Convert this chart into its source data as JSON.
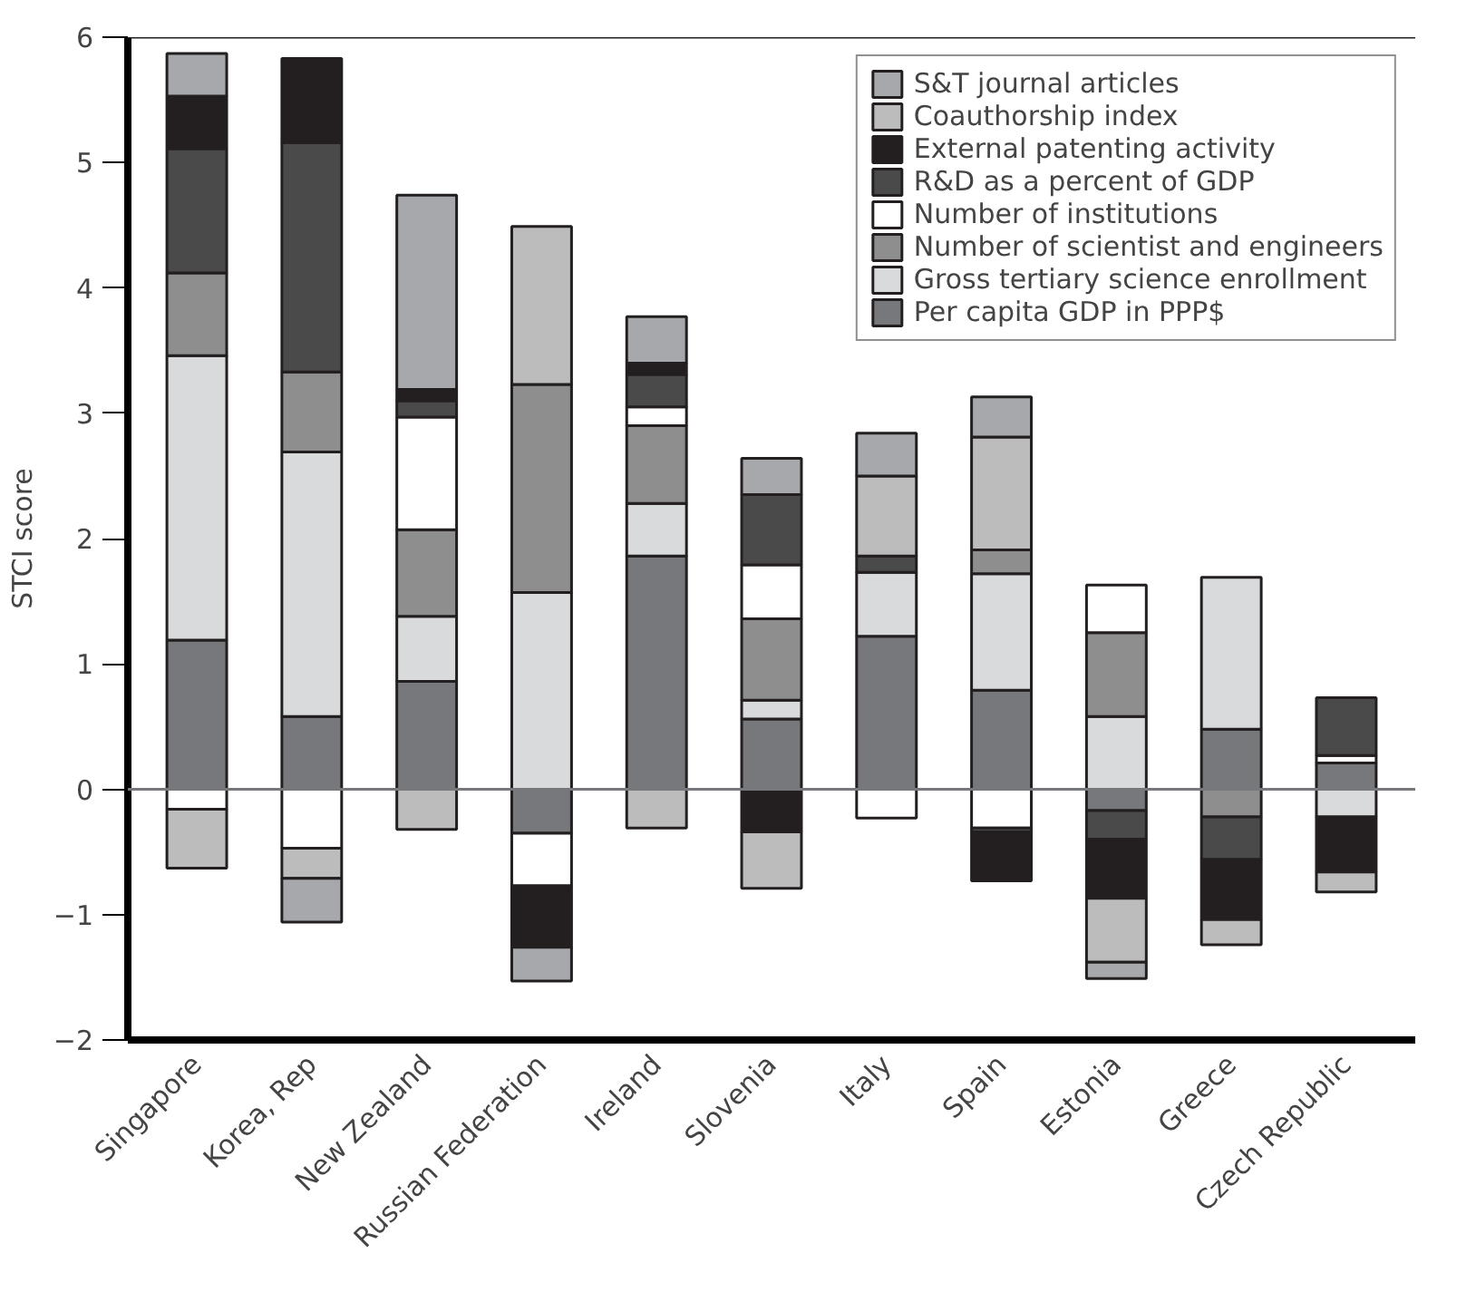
{
  "chart_data": {
    "type": "bar",
    "stacked": true,
    "ylabel": "STCI score",
    "categories": [
      "Singapore",
      "Korea, Rep",
      "New Zealand",
      "Russian Federation",
      "Ireland",
      "Slovenia",
      "Italy",
      "Spain",
      "Estonia",
      "Greece",
      "Czech Republic"
    ],
    "series": [
      {
        "name": "Per capita GDP in PPP$",
        "color": "#77787b",
        "values": [
          1.19,
          0.58,
          0.86,
          -0.35,
          1.86,
          0.56,
          1.22,
          0.79,
          -0.17,
          0.48,
          0.21
        ]
      },
      {
        "name": "Gross tertiary science enrollment",
        "color": "#d9dadb",
        "values": [
          2.27,
          2.11,
          0.52,
          1.57,
          0.42,
          0.15,
          0.51,
          0.93,
          0.58,
          1.21,
          -0.22
        ]
      },
      {
        "name": "Number of scientist and engineers",
        "color": "#8e8e8e",
        "values": [
          0.66,
          0.64,
          0.69,
          1.66,
          0.62,
          0.65,
          null,
          0.19,
          0.67,
          -0.22,
          null
        ]
      },
      {
        "name": "Number of institutions",
        "color": "#ffffff",
        "values": [
          -0.16,
          -0.47,
          0.9,
          -0.42,
          0.15,
          0.43,
          -0.23,
          -0.31,
          0.38,
          null,
          0.06
        ]
      },
      {
        "name": "R&D as a percent of GDP",
        "color": "#4a4a4a",
        "values": [
          0.99,
          1.83,
          0.13,
          null,
          0.26,
          0.56,
          0.13,
          -0.03,
          -0.23,
          -0.34,
          0.46
        ]
      },
      {
        "name": "External patenting activity",
        "color": "#231f20",
        "values": [
          0.42,
          0.67,
          0.09,
          -0.49,
          0.09,
          -0.34,
          null,
          -0.39,
          -0.47,
          -0.48,
          -0.44
        ]
      },
      {
        "name": "Coauthorship index",
        "color": "#bcbcbc",
        "values": [
          -0.47,
          -0.24,
          -0.32,
          1.26,
          -0.31,
          -0.45,
          0.64,
          0.9,
          -0.51,
          -0.2,
          -0.16
        ]
      },
      {
        "name": "S&T journal articles",
        "color": "#a6a8ab",
        "values": [
          0.34,
          -0.35,
          1.55,
          -0.27,
          0.37,
          0.29,
          0.34,
          0.32,
          -0.13,
          null,
          null
        ]
      }
    ],
    "ylim": [
      -2,
      6
    ],
    "yticks": [
      -2,
      -1,
      0,
      1,
      2,
      3,
      4,
      5,
      6
    ],
    "ref_lines": [
      {
        "axis": "y",
        "value": 0,
        "color": "#77787b"
      }
    ],
    "grid": false,
    "legend": "top right"
  }
}
